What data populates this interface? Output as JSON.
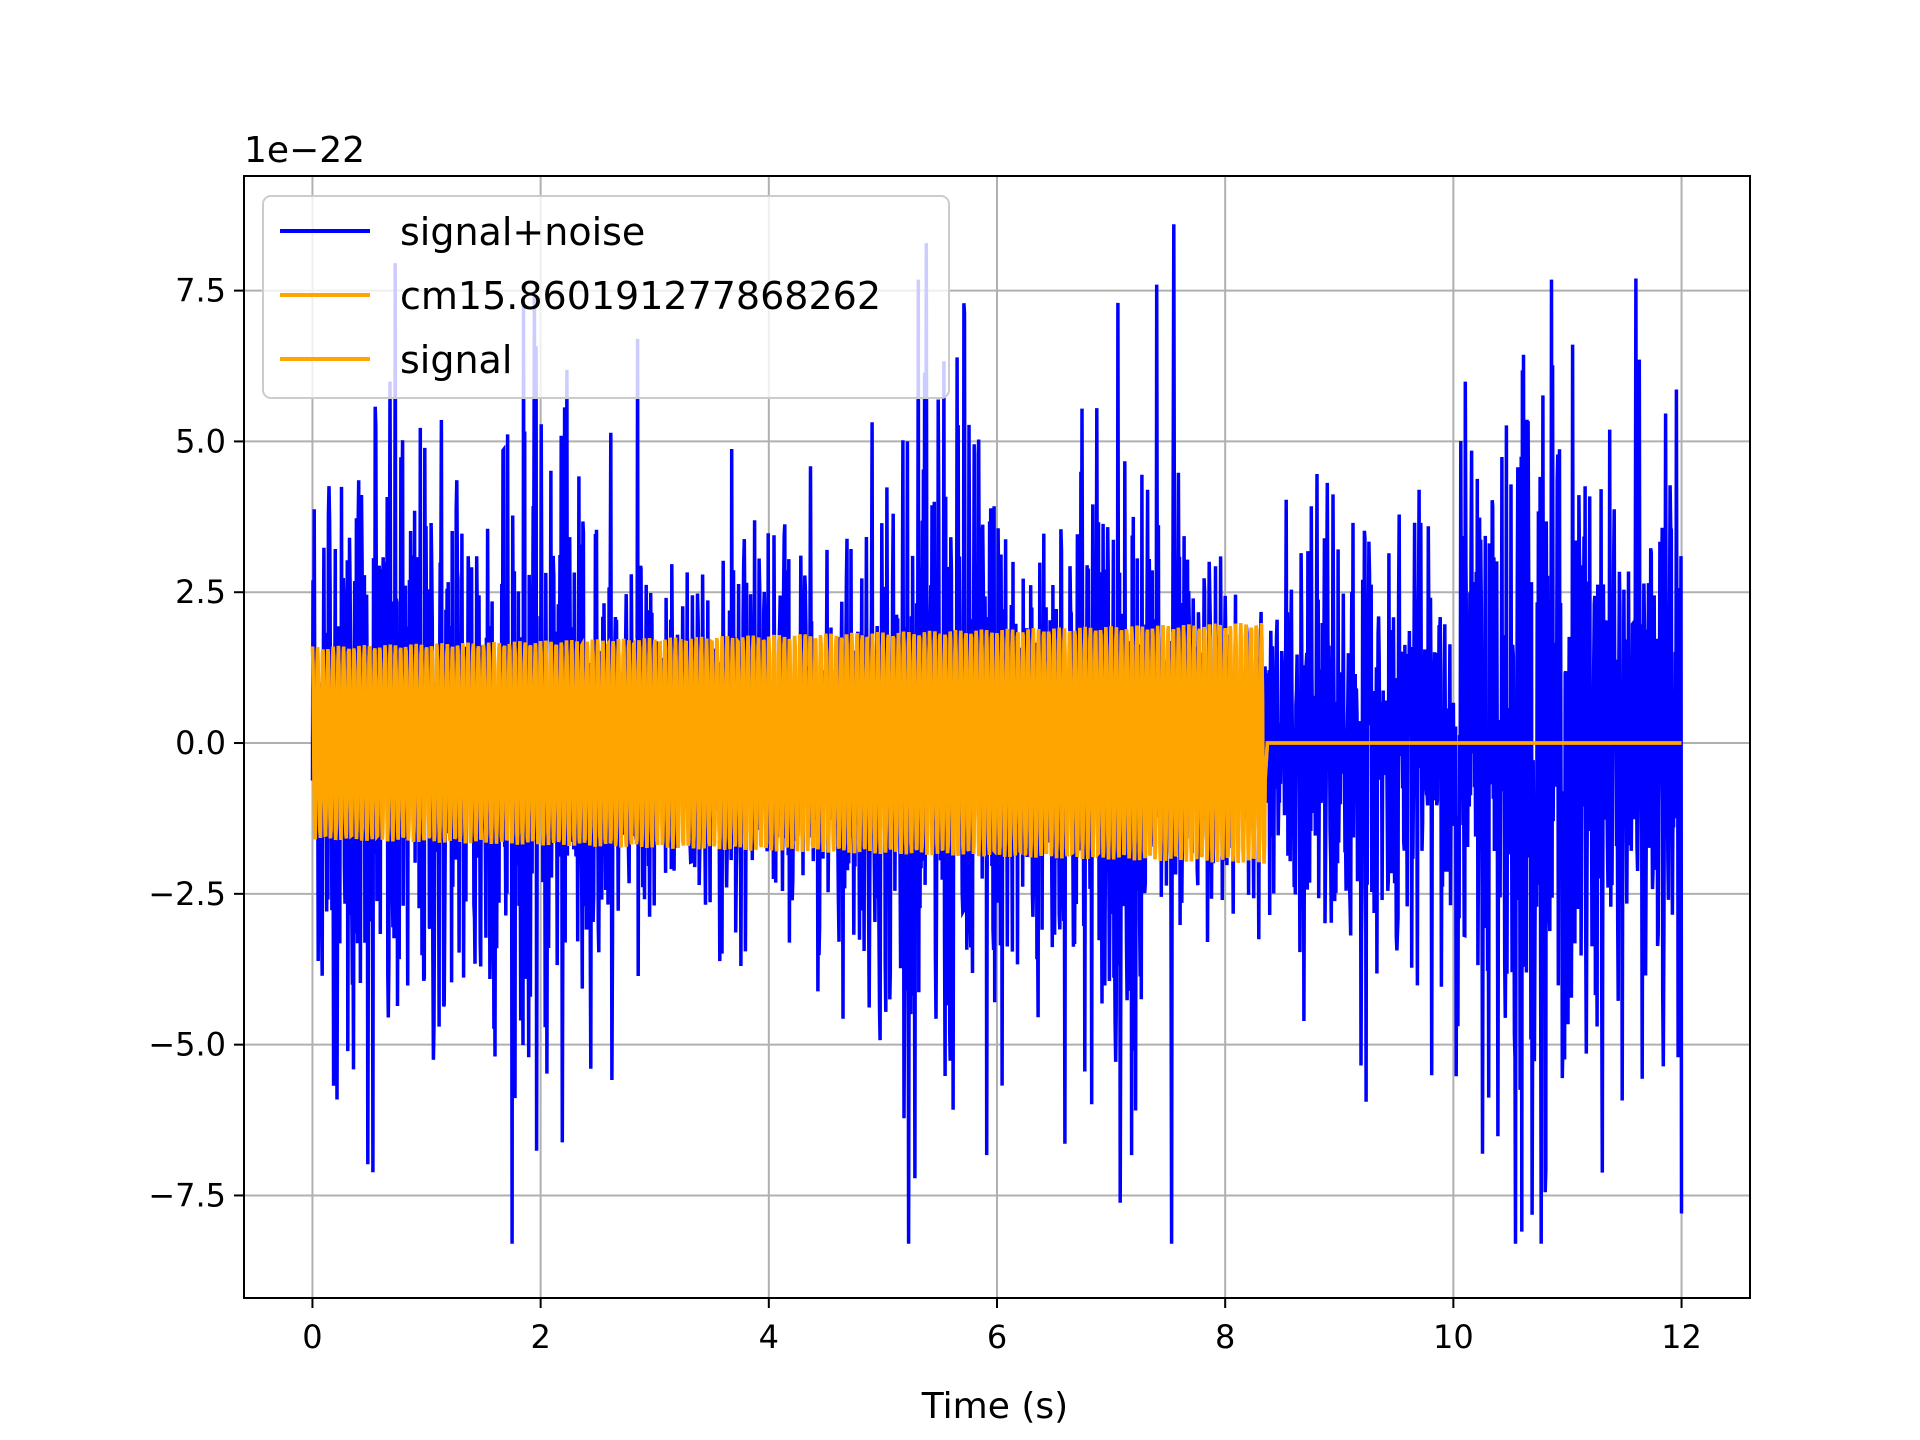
{
  "chart_data": {
    "type": "line",
    "title": "",
    "xlabel": "Time (s)",
    "ylabel": "",
    "y_offset_label": "1e−22",
    "xlim": [
      -0.6,
      12.6
    ],
    "ylim": [
      -9.2,
      9.4
    ],
    "x_ticks": [
      0,
      2,
      4,
      6,
      8,
      10,
      12
    ],
    "x_tick_labels": [
      "0",
      "2",
      "4",
      "6",
      "8",
      "10",
      "12"
    ],
    "y_ticks": [
      -7.5,
      -5.0,
      -2.5,
      0.0,
      2.5,
      5.0,
      7.5
    ],
    "y_tick_labels": [
      "−7.5",
      "−5.0",
      "−2.5",
      "0.0",
      "2.5",
      "5.0",
      "7.5"
    ],
    "grid": true,
    "legend_position": "upper left",
    "colors": {
      "signal_noise": "#0000ff",
      "template": "#ffa500",
      "signal": "#ffa500"
    },
    "series": [
      {
        "name": "signal+noise",
        "color": "#0000ff",
        "description": "noisy strain data, roughly Gaussian, peaks between about -8.3 and 8.6",
        "x_range": [
          0,
          12
        ],
        "y_min": -8.3,
        "y_max": 8.6,
        "notable_peaks": [
          {
            "x": 2.85,
            "y": 6.7
          },
          {
            "x": 7.4,
            "y": 7.6
          },
          {
            "x": 7.55,
            "y": 8.6
          },
          {
            "x": 7.53,
            "y": -8.3
          },
          {
            "x": 11.6,
            "y": 7.7
          },
          {
            "x": 10.6,
            "y": -8.1
          },
          {
            "x": 12.0,
            "y": -7.8
          }
        ]
      },
      {
        "name": "cm15.860191277868262",
        "color": "#ffa500",
        "x_range": [
          0,
          8.35
        ],
        "amplitude_start": 1.6,
        "amplitude_end": 2.0,
        "after_end_value": 0.0
      },
      {
        "name": "signal",
        "color": "#ffa500",
        "x_range": [
          0,
          12
        ],
        "amplitude_start": 1.6,
        "amplitude_end": 2.0,
        "oscillation_end": 8.35,
        "after_end_value": 0.0
      }
    ]
  }
}
